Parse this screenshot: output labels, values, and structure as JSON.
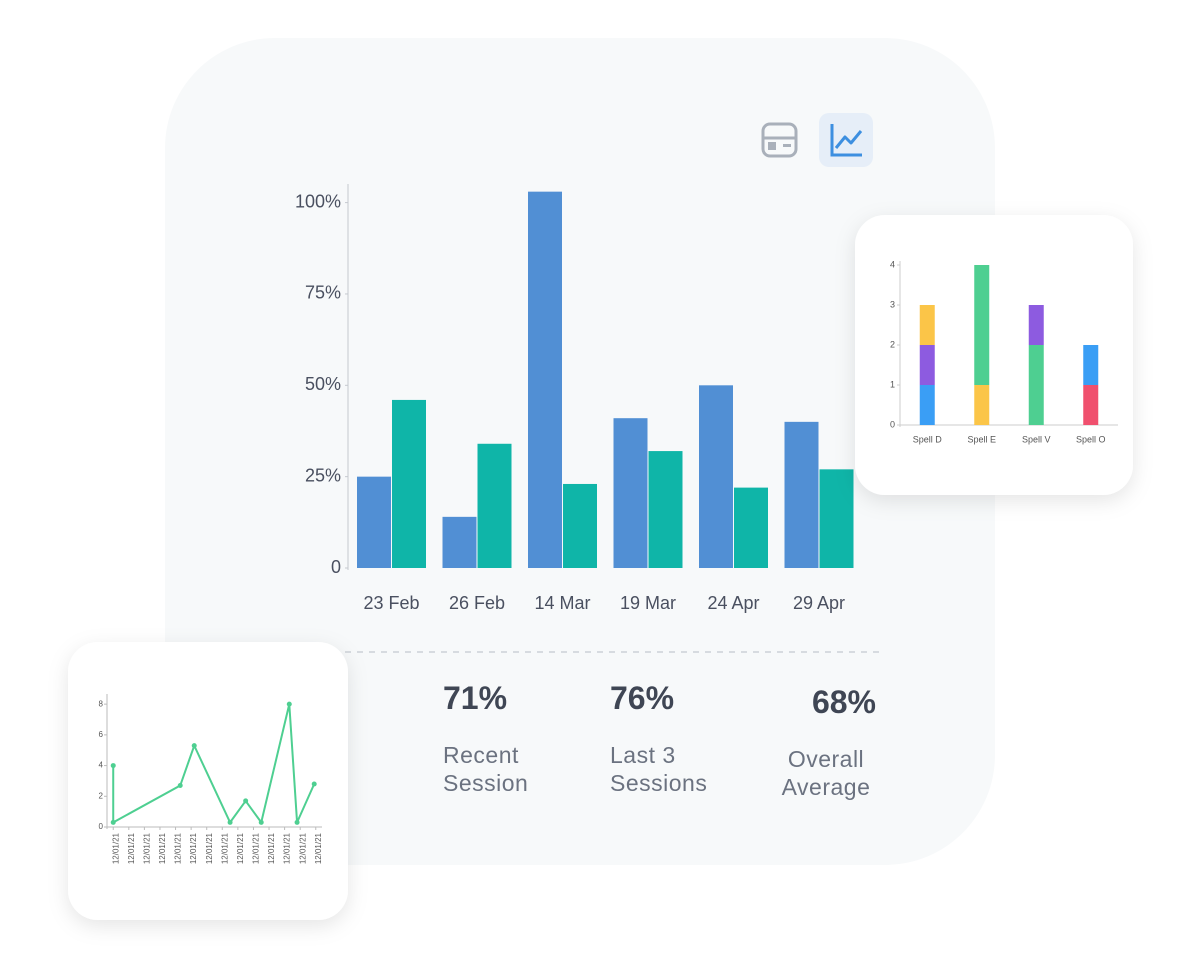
{
  "chart_data": [
    {
      "type": "bar",
      "categories": [
        "23 Feb",
        "26 Feb",
        "14 Mar",
        "19 Mar",
        "24 Apr",
        "29 Apr"
      ],
      "series": [
        {
          "color": "#518fd4",
          "values": [
            25,
            14,
            103,
            41,
            50,
            40
          ]
        },
        {
          "color": "#0fb5a8",
          "values": [
            46,
            34,
            23,
            32,
            22,
            27
          ]
        }
      ],
      "ylim": [
        0,
        104
      ],
      "yticks": [
        0,
        {
          "value": 25,
          "label": "25%"
        },
        {
          "value": 50,
          "label": "50%"
        },
        {
          "value": 75,
          "label": "75%"
        },
        {
          "value": 100,
          "label": "100%"
        }
      ]
    },
    {
      "type": "stacked_bar",
      "categories": [
        "Spell D",
        "Spell E",
        "Spell V",
        "Spell O"
      ],
      "stacks": [
        [
          {
            "color": "#3a9ef5",
            "value": 1
          },
          {
            "color": "#8d5be0",
            "value": 1
          },
          {
            "color": "#fbc548",
            "value": 1
          }
        ],
        [
          {
            "color": "#fbc548",
            "value": 1
          },
          {
            "color": "#4ecf91",
            "value": 3
          }
        ],
        [
          {
            "color": "#4ecf91",
            "value": 2
          },
          {
            "color": "#8d5be0",
            "value": 1
          }
        ],
        [
          {
            "color": "#f0506e",
            "value": 1
          },
          {
            "color": "#3a9ef5",
            "value": 1
          }
        ]
      ],
      "ylim": [
        0,
        4
      ],
      "yticks": [
        0,
        1,
        2,
        3,
        4
      ]
    },
    {
      "type": "line",
      "color": "#4ecf91",
      "x": [
        0,
        0,
        4.3,
        5.2,
        7.5,
        8.5,
        9.5,
        11.3,
        11.8,
        12.9
      ],
      "values": [
        4,
        0.3,
        2.7,
        5.3,
        0.3,
        1.7,
        0.3,
        8,
        0.3,
        2.8
      ],
      "xlim": [
        -0.4,
        13.4
      ],
      "xticks": [
        {
          "value": 0,
          "label": "12/01/21"
        },
        {
          "value": 1,
          "label": "12/01/21"
        },
        {
          "value": 2,
          "label": "12/01/21"
        },
        {
          "value": 3,
          "label": "12/01/21"
        },
        {
          "value": 4,
          "label": "12/01/21"
        },
        {
          "value": 5,
          "label": "12/01/21"
        },
        {
          "value": 6,
          "label": "12/01/21"
        },
        {
          "value": 7,
          "label": "12/01/21"
        },
        {
          "value": 8,
          "label": "12/01/21"
        },
        {
          "value": 9,
          "label": "12/01/21"
        },
        {
          "value": 10,
          "label": "12/01/21"
        },
        {
          "value": 11,
          "label": "12/01/21"
        },
        {
          "value": 12,
          "label": "12/01/21"
        },
        {
          "value": 13,
          "label": "12/01/21"
        }
      ],
      "ylim": [
        0,
        8.4
      ],
      "yticks": [
        0,
        2,
        4,
        6,
        8
      ]
    }
  ],
  "stats": [
    {
      "value": "71%",
      "label": "Recent Session"
    },
    {
      "value": "76%",
      "label": "Last 3 Sessions"
    },
    {
      "value": "68%",
      "label": "Overall Average"
    }
  ]
}
